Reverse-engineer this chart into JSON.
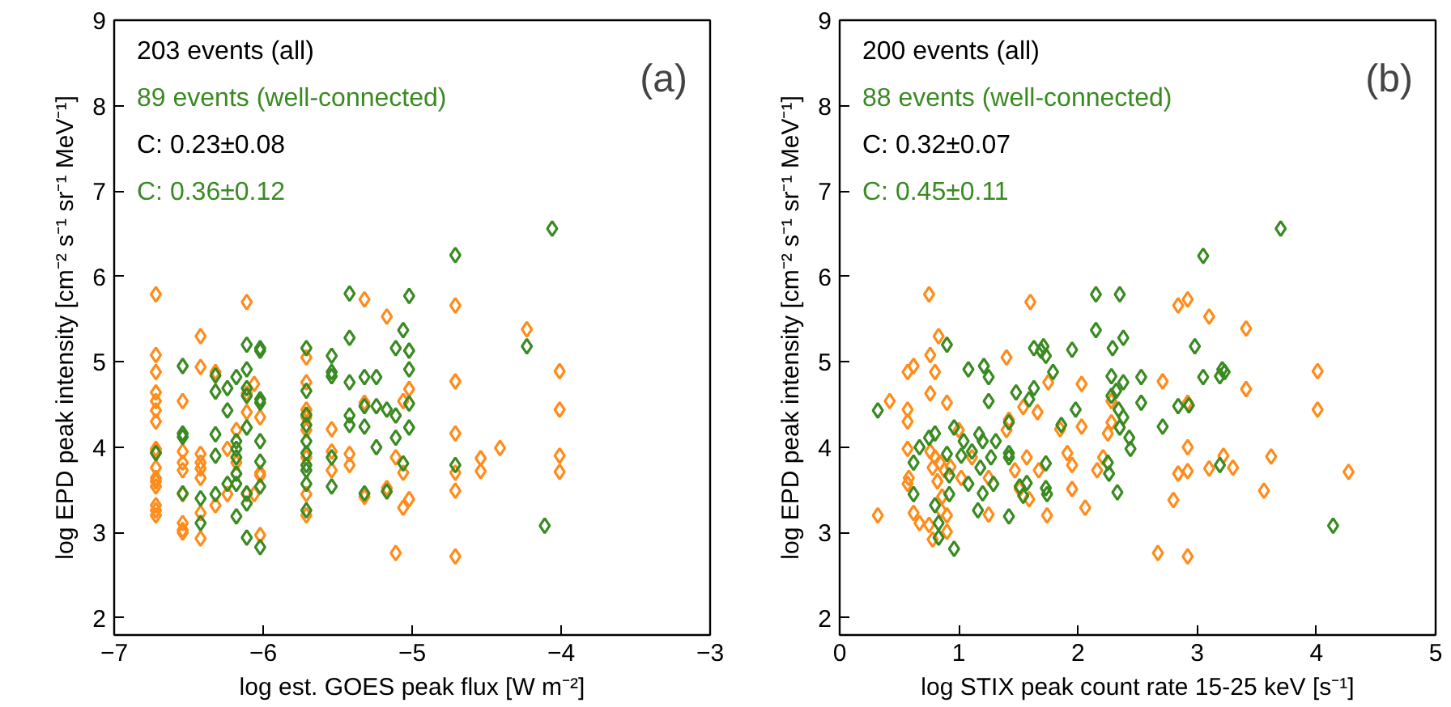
{
  "chart_data": [
    {
      "type": "scatter",
      "xlabel": "log est. GOES peak flux [W m⁻²]",
      "ylabel": "log EPD peak intensity [cm⁻² s⁻¹ sr⁻¹ MeV⁻¹]",
      "xlim": [
        -7,
        -3
      ],
      "ylim": [
        1.8,
        9
      ],
      "xticks": [
        -7,
        -6,
        -5,
        -4,
        -3
      ],
      "yticks": [
        2,
        3,
        4,
        5,
        6,
        7,
        8,
        9
      ],
      "marker": "diamond",
      "grid": false,
      "annotations": [
        "203 events (all)",
        "C: 0.23±0.08",
        "C: 0.36±0.12",
        "(a)"
      ],
      "series": [
        {
          "color": "#ff8c1a",
          "x": [
            -6.72,
            -6.72,
            -6.72,
            -6.72,
            -6.72,
            -6.72,
            -6.72,
            -6.72,
            -6.72,
            -6.72,
            -6.72,
            -6.72,
            -6.72,
            -6.72,
            -6.72,
            -6.72,
            -6.54,
            -6.54,
            -6.54,
            -6.54,
            -6.54,
            -6.54,
            -6.54,
            -6.54,
            -6.42,
            -6.42,
            -6.42,
            -6.42,
            -6.42,
            -6.42,
            -6.42,
            -6.42,
            -6.32,
            -6.32,
            -6.24,
            -6.24,
            -6.18,
            -6.18,
            -6.11,
            -6.11,
            -6.11,
            -6.11,
            -6.06,
            -6.06,
            -6.02,
            -6.02,
            -6.02,
            -6.02,
            -5.71,
            -5.71,
            -5.71,
            -5.71,
            -5.71,
            -5.71,
            -5.71,
            -5.71,
            -5.54,
            -5.54,
            -5.54,
            -5.42,
            -5.42,
            -5.32,
            -5.32,
            -5.32,
            -5.17,
            -5.17,
            -5.11,
            -5.11,
            -5.06,
            -5.06,
            -5.06,
            -5.02,
            -5.02,
            -4.71,
            -4.71,
            -4.71,
            -4.71,
            -4.71,
            -4.71,
            -4.54,
            -4.54,
            -4.41,
            -4.23,
            -4.01,
            -4.01,
            -4.01,
            -4.01
          ],
          "values": [
            5.79,
            5.08,
            4.88,
            4.64,
            4.54,
            4.43,
            4.3,
            3.98,
            3.95,
            3.76,
            3.64,
            3.6,
            3.54,
            3.32,
            3.26,
            3.2,
            4.54,
            3.95,
            3.82,
            3.73,
            3.45,
            3.11,
            3.0,
            3.03,
            5.3,
            4.94,
            3.92,
            3.82,
            3.75,
            3.64,
            3.23,
            2.93,
            4.88,
            3.32,
            3.98,
            3.45,
            4.2,
            3.82,
            5.7,
            4.63,
            4.41,
            3.45,
            4.74,
            3.45,
            4.35,
            3.7,
            3.67,
            2.97,
            5.05,
            4.76,
            4.44,
            4.35,
            4.2,
            3.88,
            3.45,
            3.2,
            4.21,
            3.95,
            3.73,
            3.92,
            3.79,
            5.73,
            4.52,
            3.42,
            5.53,
            3.52,
            3.88,
            2.76,
            4.54,
            3.7,
            3.29,
            4.68,
            3.39,
            5.66,
            4.77,
            4.16,
            3.7,
            3.49,
            2.72,
            3.87,
            3.72,
            3.99,
            5.38,
            4.89,
            4.44,
            3.9,
            3.71
          ]
        },
        {
          "name": "89 events (well-connected)",
          "color": "#3a8a22",
          "x": [
            -6.72,
            -6.54,
            -6.54,
            -6.54,
            -6.54,
            -6.42,
            -6.42,
            -6.32,
            -6.32,
            -6.32,
            -6.32,
            -6.32,
            -6.24,
            -6.24,
            -6.24,
            -6.18,
            -6.18,
            -6.18,
            -6.18,
            -6.18,
            -6.18,
            -6.18,
            -6.11,
            -6.11,
            -6.11,
            -6.11,
            -6.11,
            -6.11,
            -6.11,
            -6.11,
            -6.02,
            -6.02,
            -6.02,
            -6.02,
            -6.02,
            -6.02,
            -6.02,
            -6.02,
            -5.71,
            -5.71,
            -5.71,
            -5.71,
            -5.71,
            -5.71,
            -5.71,
            -5.71,
            -5.71,
            -5.71,
            -5.54,
            -5.54,
            -5.54,
            -5.54,
            -5.54,
            -5.42,
            -5.42,
            -5.42,
            -5.42,
            -5.42,
            -5.32,
            -5.32,
            -5.32,
            -5.32,
            -5.24,
            -5.24,
            -5.24,
            -5.17,
            -5.17,
            -5.11,
            -5.11,
            -5.11,
            -5.06,
            -5.06,
            -5.02,
            -5.02,
            -5.02,
            -5.02,
            -5.02,
            -4.71,
            -4.71,
            -4.23,
            -4.11,
            -4.06
          ],
          "values": [
            3.93,
            4.95,
            4.16,
            4.12,
            3.46,
            3.4,
            3.11,
            4.84,
            4.65,
            4.15,
            3.9,
            3.45,
            4.69,
            4.43,
            3.57,
            4.82,
            4.07,
            3.98,
            3.88,
            3.69,
            3.57,
            3.19,
            5.2,
            4.91,
            4.69,
            4.6,
            4.23,
            3.46,
            3.34,
            2.94,
            5.16,
            5.13,
            4.56,
            4.52,
            4.07,
            3.83,
            3.54,
            2.83,
            5.16,
            4.66,
            4.38,
            4.26,
            4.07,
            3.93,
            3.79,
            3.73,
            3.57,
            3.26,
            5.07,
            4.88,
            4.83,
            3.88,
            3.54,
            5.8,
            5.28,
            4.76,
            4.37,
            4.26,
            4.82,
            4.48,
            4.24,
            3.46,
            4.82,
            4.48,
            4.0,
            4.44,
            3.48,
            5.16,
            4.37,
            4.11,
            5.37,
            3.81,
            5.77,
            5.13,
            4.91,
            4.51,
            4.23,
            6.25,
            3.79,
            5.18,
            3.08,
            6.56
          ]
        }
      ]
    },
    {
      "type": "scatter",
      "xlabel": "log STIX peak count rate 15-25 keV [s⁻¹]",
      "ylabel": "log EPD peak intensity [cm⁻² s⁻¹ sr⁻¹ MeV⁻¹]",
      "xlim": [
        0,
        5
      ],
      "ylim": [
        1.8,
        9
      ],
      "xticks": [
        0,
        1,
        2,
        3,
        4,
        5
      ],
      "yticks": [
        2,
        3,
        4,
        5,
        6,
        7,
        8,
        9
      ],
      "marker": "diamond",
      "grid": false,
      "annotations": [
        "200 events (all)",
        "C: 0.32±0.07",
        "C: 0.45±0.11",
        "(b)"
      ],
      "series": [
        {
          "color": "#ff8c1a",
          "x": [
            0.32,
            0.42,
            0.57,
            0.57,
            0.57,
            0.62,
            0.57,
            0.58,
            0.57,
            0.62,
            0.67,
            0.75,
            0.83,
            0.76,
            0.8,
            0.76,
            0.9,
            0.76,
            0.8,
            0.84,
            0.78,
            0.88,
            0.93,
            0.82,
            0.86,
            0.75,
            0.78,
            0.9,
            0.9,
            0.85,
            1.0,
            1.02,
            1.11,
            1.25,
            1.25,
            1.4,
            1.42,
            1.4,
            1.47,
            1.51,
            1.57,
            1.59,
            1.6,
            1.54,
            1.66,
            1.67,
            1.74,
            1.75,
            1.85,
            1.91,
            1.95,
            1.95,
            2.03,
            2.03,
            2.06,
            2.16,
            2.21,
            2.25,
            2.28,
            2.28,
            2.67,
            2.71,
            2.8,
            2.84,
            2.84,
            2.92,
            2.92,
            2.92,
            2.92,
            2.92,
            3.1,
            3.1,
            3.22,
            3.3,
            3.41,
            3.41,
            3.56,
            3.62,
            4.01,
            4.01,
            4.27
          ],
          "values": [
            3.2,
            4.54,
            4.44,
            4.3,
            4.88,
            4.95,
            3.98,
            3.64,
            3.57,
            3.23,
            3.11,
            5.79,
            5.3,
            5.08,
            4.88,
            4.63,
            4.52,
            3.95,
            3.88,
            3.82,
            3.76,
            3.73,
            3.77,
            3.6,
            3.42,
            3.09,
            2.92,
            3.2,
            3.01,
            3.26,
            4.2,
            3.64,
            3.88,
            3.21,
            3.64,
            5.05,
            4.32,
            4.2,
            3.73,
            3.51,
            3.88,
            3.39,
            5.7,
            4.47,
            4.41,
            3.73,
            3.2,
            4.76,
            4.21,
            3.93,
            3.79,
            3.51,
            4.74,
            4.24,
            3.29,
            3.73,
            3.88,
            4.16,
            4.29,
            4.54,
            2.76,
            4.77,
            3.38,
            5.66,
            3.69,
            5.73,
            4.52,
            4.0,
            3.72,
            2.72,
            5.53,
            3.75,
            3.9,
            3.76,
            5.39,
            4.68,
            3.49,
            3.89,
            4.89,
            4.44,
            3.71
          ]
        },
        {
          "name": "88 events (well-connected)",
          "color": "#3a8a22",
          "x": [
            0.32,
            0.62,
            0.62,
            0.67,
            0.75,
            0.8,
            0.9,
            0.9,
            0.8,
            0.83,
            0.83,
            0.96,
            0.92,
            0.92,
            0.96,
            1.04,
            1.02,
            1.08,
            1.08,
            1.21,
            1.25,
            1.25,
            1.11,
            1.17,
            1.2,
            1.27,
            1.31,
            1.18,
            1.2,
            1.16,
            1.29,
            1.42,
            1.42,
            1.42,
            1.42,
            1.48,
            1.59,
            1.63,
            1.51,
            1.57,
            1.54,
            1.63,
            1.69,
            1.71,
            1.73,
            1.79,
            1.73,
            1.73,
            1.74,
            1.86,
            1.95,
            1.98,
            2.15,
            2.15,
            2.35,
            2.38,
            2.29,
            2.28,
            2.28,
            2.32,
            2.38,
            2.34,
            2.38,
            2.35,
            2.43,
            2.44,
            2.25,
            2.26,
            2.33,
            2.53,
            2.53,
            2.71,
            2.84,
            2.93,
            2.98,
            3.05,
            3.05,
            3.19,
            3.21,
            3.23,
            3.19,
            3.7,
            4.14
          ],
          "values": [
            4.43,
            3.45,
            3.82,
            4.0,
            4.11,
            4.16,
            5.2,
            3.92,
            3.32,
            3.11,
            2.94,
            2.81,
            3.67,
            3.45,
            4.23,
            4.07,
            3.9,
            3.57,
            4.91,
            4.95,
            4.82,
            4.54,
            3.95,
            4.15,
            4.07,
            3.88,
            4.07,
            3.76,
            3.46,
            3.26,
            3.57,
            4.29,
            3.93,
            3.88,
            3.19,
            4.64,
            4.56,
            4.69,
            3.54,
            3.58,
            3.43,
            5.16,
            5.13,
            5.18,
            5.07,
            4.88,
            3.81,
            3.52,
            3.45,
            4.26,
            5.14,
            4.44,
            5.79,
            5.37,
            5.79,
            5.28,
            5.16,
            4.83,
            4.6,
            4.66,
            4.76,
            4.44,
            4.35,
            4.23,
            4.11,
            3.98,
            3.82,
            3.69,
            3.47,
            4.82,
            4.52,
            4.24,
            4.48,
            4.49,
            5.18,
            6.24,
            4.82,
            4.83,
            4.91,
            4.88,
            3.79,
            6.56,
            3.08
          ]
        }
      ]
    }
  ]
}
